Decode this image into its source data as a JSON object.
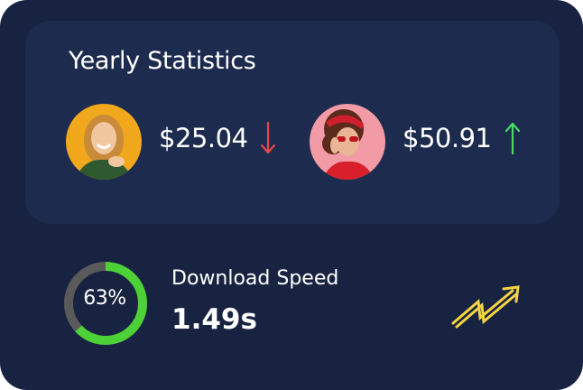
{
  "stats": {
    "title": "Yearly Statistics",
    "items": [
      {
        "amount": "$25.04",
        "trend": "down",
        "trend_color": "#e5484d",
        "avatar": "woman-yellow-background-avatar"
      },
      {
        "amount": "$50.91",
        "trend": "up",
        "trend_color": "#4cd964",
        "avatar": "woman-pink-background-avatar"
      }
    ]
  },
  "download": {
    "label": "Download Speed",
    "value": "1.49s",
    "percent_label": "63%",
    "percent": 63
  },
  "colors": {
    "card_bg": "#172340",
    "panel_bg": "#1d2b4e",
    "gauge_fill": "#4cd137",
    "gauge_track": "#5a5a5a",
    "icon_yellow": "#f5d442"
  }
}
